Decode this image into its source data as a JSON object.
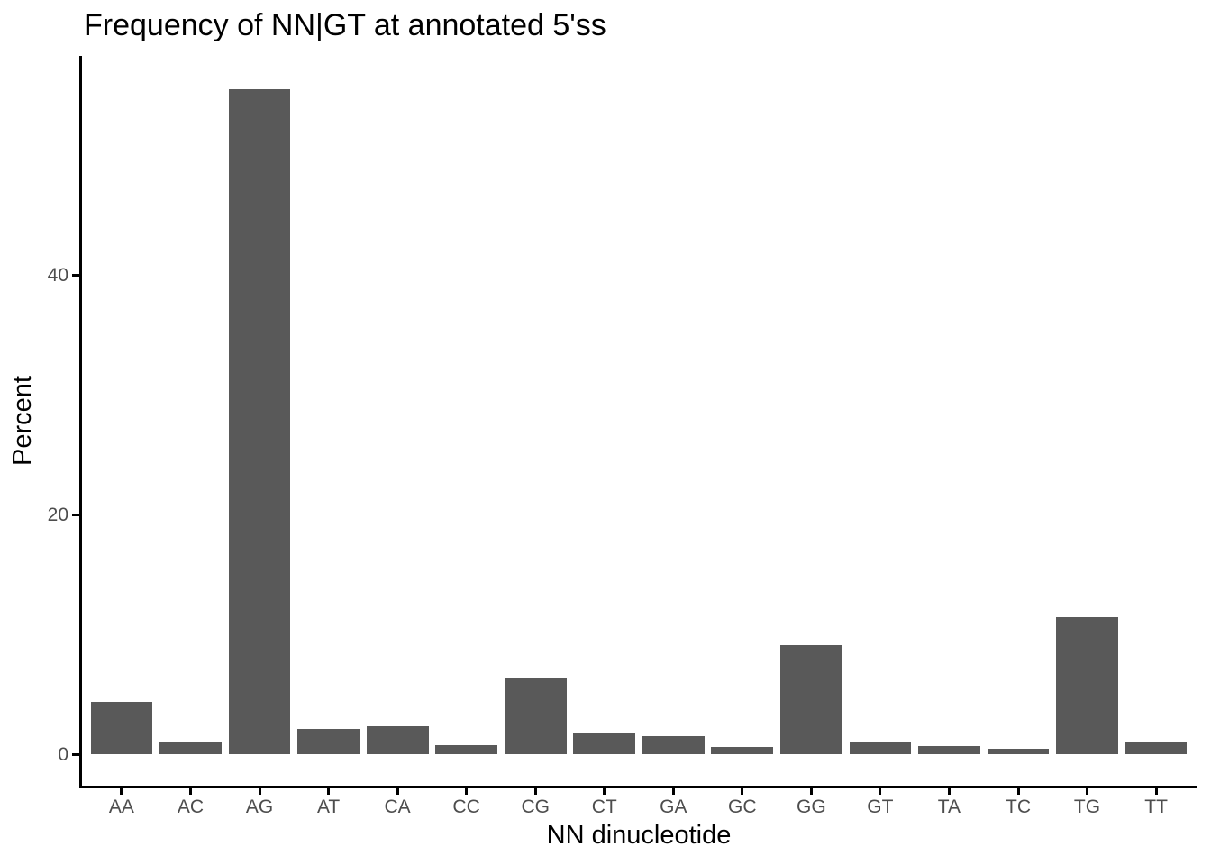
{
  "chart_data": {
    "type": "bar",
    "title": "Frequency of NN|GT at annotated 5'ss",
    "xlabel": "NN dinucleotide",
    "ylabel": "Percent",
    "categories": [
      "AA",
      "AC",
      "AG",
      "AT",
      "CA",
      "CC",
      "CG",
      "CT",
      "GA",
      "GC",
      "GG",
      "GT",
      "TA",
      "TC",
      "TG",
      "TT"
    ],
    "values": [
      4.4,
      1.0,
      55.5,
      2.1,
      2.3,
      0.75,
      6.4,
      1.8,
      1.5,
      0.6,
      9.1,
      1.0,
      0.7,
      0.45,
      11.4,
      0.95
    ],
    "yticks": [
      0,
      20,
      40
    ],
    "ylim": [
      0,
      58.3
    ],
    "grid": false,
    "legend_position": "none",
    "bar_color": "#595959",
    "axis_line_color": "#000000",
    "tick_label_color": "#4d4d4d",
    "title_color": "#000000",
    "background_color": "#ffffff"
  }
}
